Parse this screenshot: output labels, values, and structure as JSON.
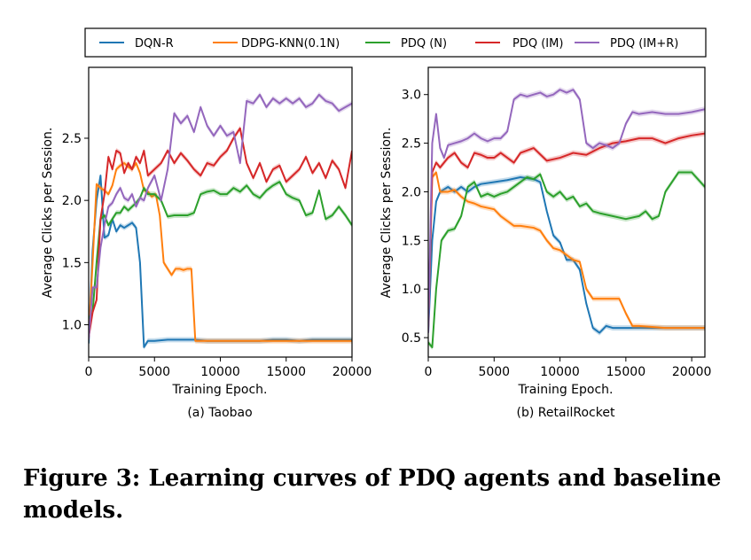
{
  "legend": {
    "entries": [
      {
        "name": "DQN-R",
        "color": "#1f77b4"
      },
      {
        "name": "DDPG-KNN(0.1N)",
        "color": "#ff7f0e"
      },
      {
        "name": "PDQ (N)",
        "color": "#2ca02c"
      },
      {
        "name": "PDQ (IM)",
        "color": "#d62728"
      },
      {
        "name": "PDQ (IM+R)",
        "color": "#9467bd"
      }
    ]
  },
  "caption": "Figure 3: Learning curves of PDQ agents and baseline models.",
  "chart_data": [
    {
      "type": "line",
      "subtitle": "(a) Taobao",
      "xlabel": "Training Epoch.",
      "ylabel": "Average Clicks per Session.",
      "xlim": [
        0,
        20000
      ],
      "ylim": [
        0.74,
        3.07
      ],
      "xticks": [
        0,
        5000,
        10000,
        15000,
        20000
      ],
      "yticks": [
        1.0,
        1.5,
        2.0,
        2.5
      ],
      "ytick_labels": [
        "1.0",
        "1.5",
        "2.0",
        "2.5"
      ],
      "grid": false,
      "legend_position": "top",
      "series": [
        {
          "name": "DQN-R",
          "color": "#1f77b4",
          "x": [
            0,
            300,
            600,
            900,
            1200,
            1500,
            1800,
            2100,
            2400,
            2700,
            3000,
            3300,
            3600,
            3900,
            4200,
            4500,
            5000,
            6000,
            7000,
            8000,
            9000,
            10000,
            11000,
            12000,
            13000,
            14000,
            15000,
            16000,
            17000,
            18000,
            19000,
            20000
          ],
          "y": [
            0.85,
            1.6,
            2.0,
            2.2,
            1.7,
            1.72,
            1.85,
            1.75,
            1.8,
            1.78,
            1.8,
            1.82,
            1.78,
            1.5,
            0.82,
            0.87,
            0.87,
            0.88,
            0.88,
            0.88,
            0.87,
            0.87,
            0.87,
            0.87,
            0.87,
            0.88,
            0.88,
            0.87,
            0.88,
            0.88,
            0.88,
            0.88
          ]
        },
        {
          "name": "DDPG-KNN(0.1N)",
          "color": "#ff7f0e",
          "x": [
            0,
            300,
            600,
            900,
            1200,
            1500,
            1800,
            2100,
            2400,
            2700,
            3000,
            3300,
            3600,
            3900,
            4200,
            4500,
            4800,
            5100,
            5400,
            5700,
            6000,
            6300,
            6600,
            6900,
            7200,
            7500,
            7800,
            8100,
            8400,
            9000,
            10000,
            12000,
            14000,
            16000,
            18000,
            20000
          ],
          "y": [
            0.9,
            1.5,
            2.13,
            2.1,
            2.08,
            2.05,
            2.12,
            2.25,
            2.28,
            2.3,
            2.27,
            2.25,
            2.3,
            2.22,
            2.08,
            2.07,
            2.03,
            2.05,
            1.88,
            1.5,
            1.45,
            1.4,
            1.45,
            1.45,
            1.44,
            1.45,
            1.45,
            0.87,
            0.87,
            0.87,
            0.87,
            0.87,
            0.87,
            0.87,
            0.87,
            0.87
          ]
        },
        {
          "name": "PDQ (N)",
          "color": "#2ca02c",
          "x": [
            0,
            300,
            600,
            900,
            1200,
            1500,
            1800,
            2100,
            2400,
            2700,
            3000,
            3300,
            3600,
            3900,
            4200,
            4500,
            5000,
            5500,
            6000,
            6500,
            7000,
            7500,
            8000,
            8500,
            9000,
            9500,
            10000,
            10500,
            11000,
            11500,
            12000,
            12500,
            13000,
            13500,
            14000,
            14500,
            15000,
            15500,
            16000,
            16500,
            17000,
            17500,
            18000,
            18500,
            19000,
            19500,
            20000
          ],
          "y": [
            1.05,
            1.1,
            1.5,
            1.85,
            1.88,
            1.8,
            1.85,
            1.9,
            1.9,
            1.95,
            1.92,
            1.95,
            1.98,
            2.02,
            2.1,
            2.05,
            2.05,
            2.0,
            1.87,
            1.88,
            1.88,
            1.88,
            1.9,
            2.05,
            2.07,
            2.08,
            2.05,
            2.05,
            2.1,
            2.07,
            2.12,
            2.05,
            2.02,
            2.08,
            2.12,
            2.15,
            2.05,
            2.02,
            2.0,
            1.88,
            1.9,
            2.08,
            1.85,
            1.88,
            1.95,
            1.88,
            1.8
          ]
        },
        {
          "name": "PDQ (IM)",
          "color": "#d62728",
          "x": [
            0,
            300,
            600,
            900,
            1200,
            1500,
            1800,
            2100,
            2400,
            2700,
            3000,
            3300,
            3600,
            3900,
            4200,
            4500,
            5000,
            5500,
            6000,
            6500,
            7000,
            7500,
            8000,
            8500,
            9000,
            9500,
            10000,
            10500,
            11000,
            11500,
            12000,
            12500,
            13000,
            13500,
            14000,
            14500,
            15000,
            15500,
            16000,
            16500,
            17000,
            17500,
            18000,
            18500,
            19000,
            19500,
            20000
          ],
          "y": [
            0.9,
            1.1,
            1.2,
            1.85,
            2.05,
            2.35,
            2.25,
            2.4,
            2.38,
            2.22,
            2.3,
            2.25,
            2.35,
            2.3,
            2.4,
            2.2,
            2.25,
            2.3,
            2.4,
            2.3,
            2.38,
            2.32,
            2.25,
            2.2,
            2.3,
            2.28,
            2.35,
            2.4,
            2.5,
            2.58,
            2.3,
            2.18,
            2.3,
            2.15,
            2.25,
            2.28,
            2.15,
            2.2,
            2.25,
            2.35,
            2.22,
            2.3,
            2.18,
            2.32,
            2.25,
            2.1,
            2.4
          ]
        },
        {
          "name": "PDQ (IM+R)",
          "color": "#9467bd",
          "x": [
            0,
            300,
            600,
            900,
            1200,
            1500,
            1800,
            2100,
            2400,
            2700,
            3000,
            3300,
            3600,
            3900,
            4200,
            4500,
            5000,
            5500,
            6000,
            6500,
            7000,
            7500,
            8000,
            8500,
            9000,
            9500,
            10000,
            10500,
            11000,
            11500,
            12000,
            12500,
            13000,
            13500,
            14000,
            14500,
            15000,
            15500,
            16000,
            16500,
            17000,
            17500,
            18000,
            18500,
            19000,
            19500,
            20000
          ],
          "y": [
            0.88,
            1.3,
            1.3,
            1.62,
            1.8,
            1.95,
            1.98,
            2.05,
            2.1,
            2.02,
            2.0,
            2.05,
            1.95,
            2.02,
            2.0,
            2.1,
            2.2,
            2.0,
            2.25,
            2.7,
            2.62,
            2.68,
            2.55,
            2.75,
            2.6,
            2.52,
            2.6,
            2.52,
            2.55,
            2.3,
            2.8,
            2.78,
            2.85,
            2.75,
            2.82,
            2.78,
            2.82,
            2.78,
            2.82,
            2.75,
            2.78,
            2.85,
            2.8,
            2.78,
            2.72,
            2.75,
            2.78
          ]
        }
      ]
    },
    {
      "type": "line",
      "subtitle": "(b) RetailRocket",
      "xlabel": "Training Epoch.",
      "ylabel": "Average Clicks per Session.",
      "xlim": [
        0,
        21000
      ],
      "ylim": [
        0.3,
        3.28
      ],
      "xticks": [
        0,
        5000,
        10000,
        15000,
        20000
      ],
      "yticks": [
        0.5,
        1.0,
        1.5,
        2.0,
        2.5,
        3.0
      ],
      "ytick_labels": [
        "0.5",
        "1.0",
        "1.5",
        "2.0",
        "2.5",
        "3.0"
      ],
      "grid": false,
      "legend_position": "top",
      "series": [
        {
          "name": "DQN-R",
          "color": "#1f77b4",
          "x": [
            0,
            300,
            600,
            900,
            1500,
            2000,
            2500,
            3000,
            3500,
            4000,
            5000,
            6000,
            7000,
            8000,
            8500,
            9000,
            9500,
            10000,
            10500,
            11000,
            11500,
            12000,
            12500,
            13000,
            13500,
            14000,
            15000,
            16000,
            18000,
            21000
          ],
          "y": [
            0.55,
            1.5,
            1.9,
            2.0,
            2.05,
            2.0,
            2.05,
            2.0,
            2.05,
            2.08,
            2.1,
            2.12,
            2.15,
            2.13,
            2.1,
            1.8,
            1.55,
            1.48,
            1.3,
            1.3,
            1.2,
            0.85,
            0.6,
            0.55,
            0.62,
            0.6,
            0.6,
            0.6,
            0.6,
            0.6
          ]
        },
        {
          "name": "DDPG-KNN(0.1N)",
          "color": "#ff7f0e",
          "x": [
            0,
            300,
            600,
            900,
            1500,
            2000,
            2500,
            3000,
            3500,
            4000,
            5000,
            5500,
            6000,
            6500,
            7000,
            8000,
            8500,
            9000,
            9500,
            10000,
            10500,
            11000,
            11500,
            12000,
            12500,
            13000,
            14000,
            14500,
            15000,
            15500,
            16000,
            18000,
            21000
          ],
          "y": [
            0.6,
            2.15,
            2.2,
            2.0,
            2.0,
            2.02,
            1.95,
            1.9,
            1.88,
            1.85,
            1.82,
            1.75,
            1.7,
            1.65,
            1.65,
            1.63,
            1.6,
            1.5,
            1.42,
            1.4,
            1.35,
            1.3,
            1.28,
            1.0,
            0.9,
            0.9,
            0.9,
            0.9,
            0.75,
            0.62,
            0.62,
            0.6,
            0.6
          ]
        },
        {
          "name": "PDQ (N)",
          "color": "#2ca02c",
          "x": [
            0,
            300,
            600,
            1000,
            1500,
            2000,
            2500,
            3000,
            3500,
            4000,
            4500,
            5000,
            5500,
            6000,
            6500,
            7000,
            7500,
            8000,
            8500,
            9000,
            9500,
            10000,
            10500,
            11000,
            11500,
            12000,
            12500,
            13000,
            14000,
            15000,
            16000,
            16500,
            17000,
            17500,
            18000,
            19000,
            20000,
            21000
          ],
          "y": [
            0.45,
            0.4,
            1.0,
            1.5,
            1.6,
            1.62,
            1.75,
            2.05,
            2.1,
            1.95,
            1.98,
            1.95,
            1.98,
            2.0,
            2.05,
            2.1,
            2.15,
            2.13,
            2.18,
            2.0,
            1.95,
            2.0,
            1.92,
            1.95,
            1.85,
            1.88,
            1.8,
            1.78,
            1.75,
            1.72,
            1.75,
            1.8,
            1.72,
            1.75,
            2.0,
            2.2,
            2.2,
            2.05
          ]
        },
        {
          "name": "PDQ (IM)",
          "color": "#d62728",
          "x": [
            0,
            300,
            600,
            900,
            1500,
            2000,
            2500,
            3000,
            3500,
            4000,
            4500,
            5000,
            5500,
            6000,
            6500,
            7000,
            8000,
            9000,
            10000,
            11000,
            12000,
            13000,
            14000,
            15000,
            16000,
            17000,
            18000,
            19000,
            20000,
            21000
          ],
          "y": [
            0.6,
            2.2,
            2.3,
            2.25,
            2.35,
            2.4,
            2.3,
            2.25,
            2.4,
            2.38,
            2.35,
            2.35,
            2.4,
            2.35,
            2.3,
            2.4,
            2.45,
            2.32,
            2.35,
            2.4,
            2.38,
            2.45,
            2.5,
            2.52,
            2.55,
            2.55,
            2.5,
            2.55,
            2.58,
            2.6
          ]
        },
        {
          "name": "PDQ (IM+R)",
          "color": "#9467bd",
          "x": [
            0,
            300,
            600,
            900,
            1200,
            1500,
            2000,
            2500,
            3000,
            3500,
            4000,
            4500,
            5000,
            5500,
            6000,
            6500,
            7000,
            7500,
            8000,
            8500,
            9000,
            9500,
            10000,
            10500,
            11000,
            11500,
            12000,
            12500,
            13000,
            13500,
            14000,
            14500,
            15000,
            15500,
            16000,
            17000,
            18000,
            19000,
            20000,
            21000
          ],
          "y": [
            0.55,
            2.5,
            2.8,
            2.45,
            2.35,
            2.48,
            2.5,
            2.52,
            2.55,
            2.6,
            2.55,
            2.52,
            2.55,
            2.55,
            2.62,
            2.95,
            3.0,
            2.98,
            3.0,
            3.02,
            2.98,
            3.0,
            3.05,
            3.02,
            3.05,
            2.95,
            2.5,
            2.45,
            2.5,
            2.48,
            2.45,
            2.5,
            2.7,
            2.82,
            2.8,
            2.82,
            2.8,
            2.8,
            2.82,
            2.85
          ]
        }
      ]
    }
  ]
}
